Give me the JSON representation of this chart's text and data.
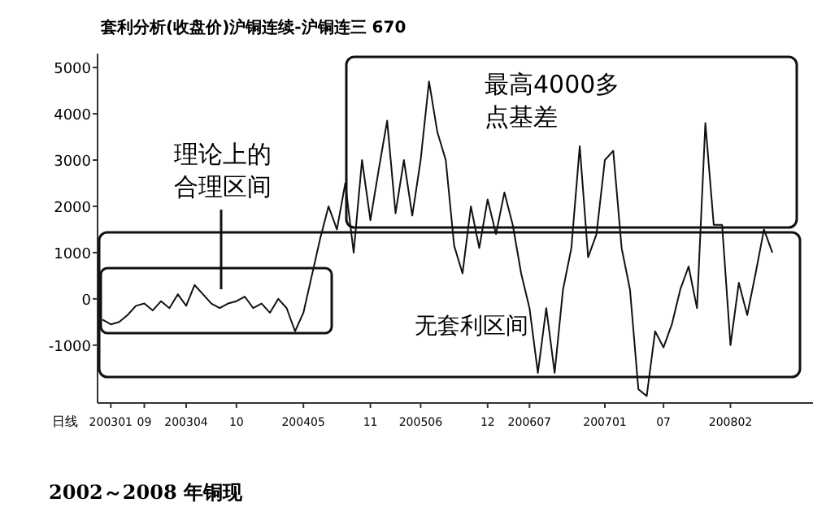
{
  "chart_data": {
    "type": "line",
    "title": "套利分析(收盘价)沪铜连续-沪铜连三 670",
    "xlabel": "日线",
    "color": "#111111",
    "categories": [
      null,
      "200301",
      null,
      null,
      null,
      "09",
      null,
      null,
      null,
      null,
      "200304",
      null,
      null,
      null,
      null,
      null,
      "10",
      null,
      null,
      null,
      null,
      null,
      null,
      null,
      "200405",
      null,
      null,
      null,
      null,
      null,
      null,
      null,
      "11",
      null,
      null,
      null,
      null,
      null,
      "200506",
      null,
      null,
      null,
      null,
      null,
      null,
      null,
      "12",
      null,
      null,
      null,
      null,
      "200607",
      null,
      null,
      null,
      null,
      null,
      null,
      null,
      null,
      "200701",
      null,
      null,
      null,
      null,
      null,
      null,
      "07",
      null,
      null,
      null,
      null,
      null,
      null,
      null,
      "200802",
      null,
      null,
      null,
      null,
      null
    ],
    "values": [
      -450,
      -550,
      -500,
      -350,
      -150,
      -100,
      -250,
      -50,
      -200,
      100,
      -150,
      300,
      100,
      -100,
      -200,
      -100,
      -50,
      50,
      -200,
      -100,
      -300,
      0,
      -200,
      -700,
      -300,
      500,
      1300,
      2000,
      1500,
      2500,
      1000,
      3000,
      1700,
      2800,
      3850,
      1850,
      3000,
      1800,
      3000,
      4700,
      3600,
      3000,
      1150,
      550,
      2000,
      1100,
      2150,
      1400,
      2300,
      1600,
      550,
      -200,
      -1600,
      -200,
      -1600,
      200,
      1100,
      3300,
      900,
      1400,
      3000,
      3200,
      1100,
      200,
      -1950,
      -2100,
      -700,
      -1050,
      -550,
      200,
      700,
      -200,
      3800,
      1600,
      1600,
      -1000,
      350,
      -350,
      550,
      1500,
      1000
    ],
    "ylim": [
      -2250,
      5300
    ],
    "yticks": [
      -1000,
      0,
      1000,
      2000,
      3000,
      4000,
      5000
    ],
    "annotations": [
      "理论上的合理区间",
      "最高4000多点基差",
      "无套利区间",
      "2002～2008 年铜现"
    ]
  }
}
